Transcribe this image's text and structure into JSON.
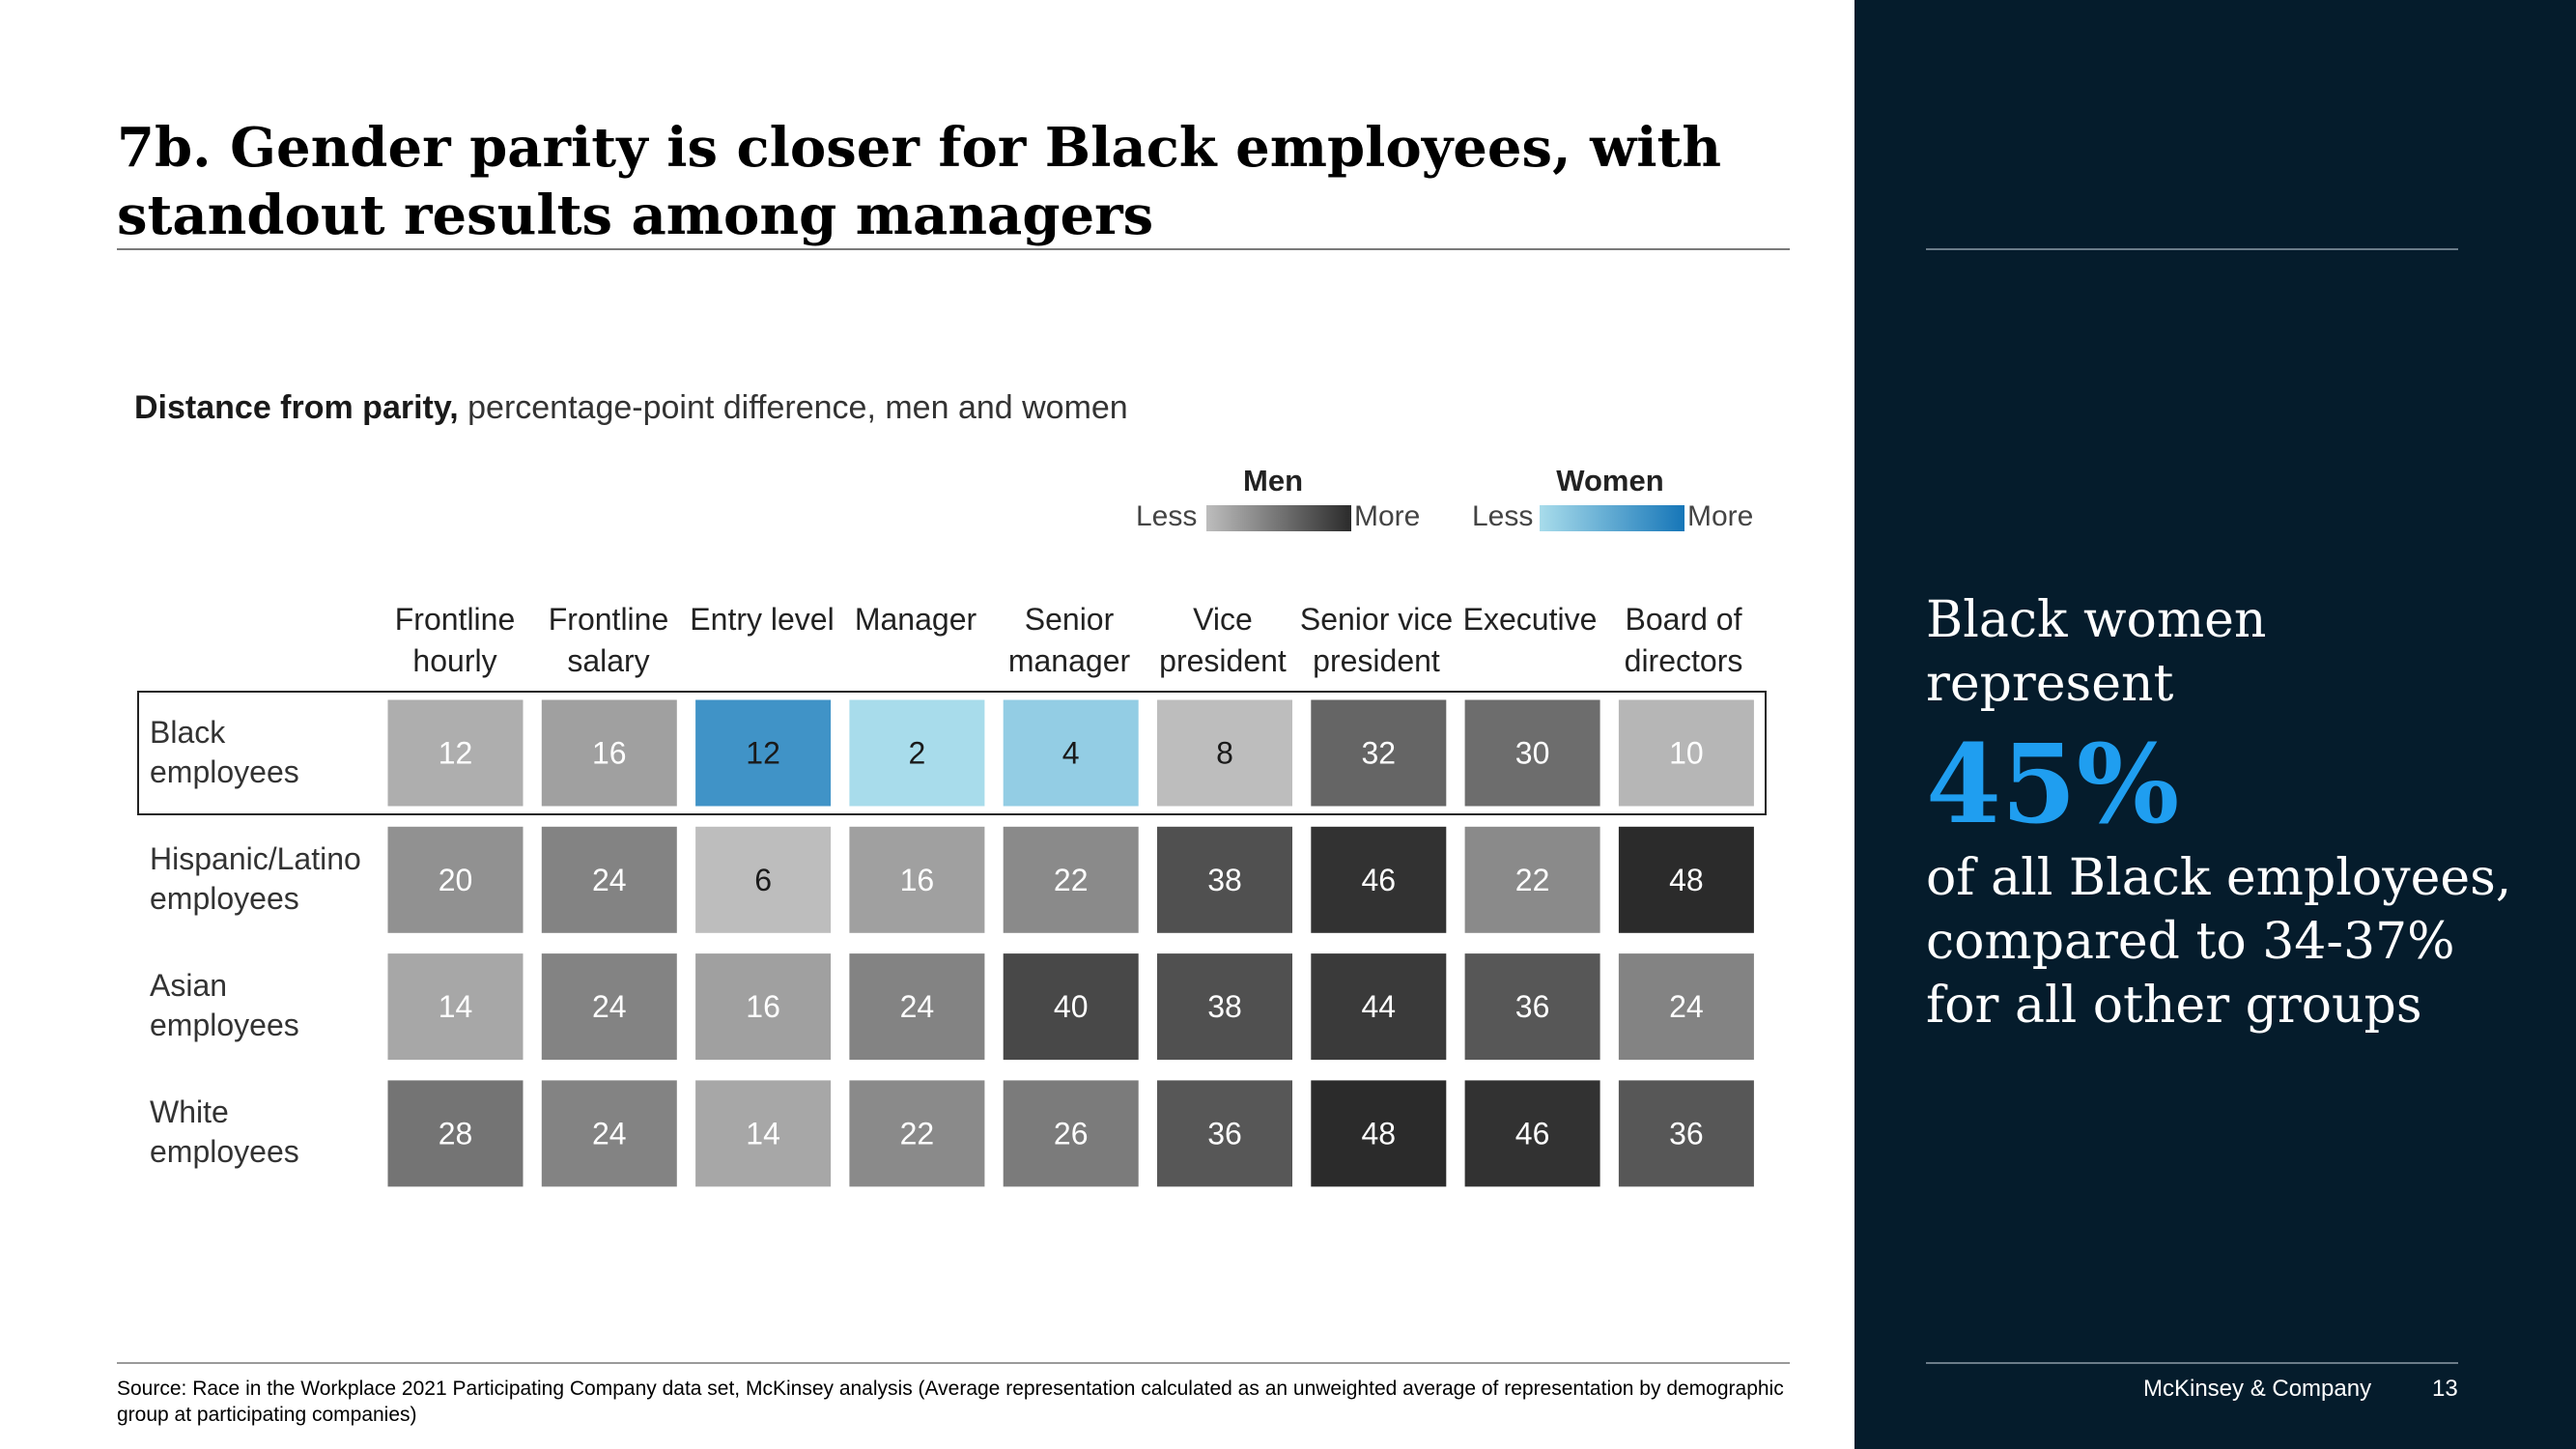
{
  "title": "7b. Gender parity is closer for Black employees, with standout results among managers",
  "subtitle_bold": "Distance from parity,",
  "subtitle_rest": " percentage-point difference, men and women",
  "legend": {
    "men": {
      "title": "Men",
      "less": "Less",
      "more": "More",
      "colors": [
        "#bdbdbd",
        "#2b2b2b"
      ]
    },
    "women": {
      "title": "Women",
      "less": "Less",
      "more": "More",
      "colors": [
        "#a8dceb",
        "#1676b8"
      ]
    }
  },
  "columns": [
    "Frontline hourly",
    "Frontline salary",
    "Entry level",
    "Manager",
    "Senior manager",
    "Vice president",
    "Senior vice president",
    "Executive",
    "Board of directors"
  ],
  "rows": [
    {
      "label": "Black employees"
    },
    {
      "label": "Hispanic/Latino employees"
    },
    {
      "label": "Asian employees"
    },
    {
      "label": "White employees"
    }
  ],
  "chart_data": {
    "type": "heatmap",
    "title": "Distance from parity, percentage-point difference, men and women",
    "x_categories": [
      "Frontline hourly",
      "Frontline salary",
      "Entry level",
      "Manager",
      "Senior manager",
      "Vice president",
      "Senior vice president",
      "Executive",
      "Board of directors"
    ],
    "y_categories": [
      "Black employees",
      "Hispanic/Latino employees",
      "Asian employees",
      "White employees"
    ],
    "values": [
      [
        12,
        16,
        12,
        2,
        4,
        8,
        32,
        30,
        10
      ],
      [
        20,
        24,
        6,
        16,
        22,
        38,
        46,
        22,
        48
      ],
      [
        14,
        24,
        16,
        24,
        40,
        38,
        44,
        36,
        24
      ],
      [
        28,
        24,
        14,
        22,
        26,
        36,
        48,
        46,
        36
      ]
    ],
    "favored": [
      [
        "men",
        "men",
        "women",
        "women",
        "women",
        "men",
        "men",
        "men",
        "men"
      ],
      [
        "men",
        "men",
        "men",
        "men",
        "men",
        "men",
        "men",
        "men",
        "men"
      ],
      [
        "men",
        "men",
        "men",
        "men",
        "men",
        "men",
        "men",
        "men",
        "men"
      ],
      [
        "men",
        "men",
        "men",
        "men",
        "men",
        "men",
        "men",
        "men",
        "men"
      ]
    ],
    "legend": [
      "Men",
      "Women"
    ],
    "highlighted_row": "Black employees"
  },
  "panel": {
    "line1": "Black women",
    "line2": "represent",
    "big_stat": "45%",
    "line3": "of all Black employees,",
    "line4": "compared to 34-37%",
    "line5": "for all other groups"
  },
  "source": "Source: Race in the Workplace 2021 Participating Company data set, McKinsey analysis (Average representation calculated as an unweighted average of representation by demographic group at participating companies)",
  "footer": {
    "company": "McKinsey & Company",
    "page": "13"
  }
}
